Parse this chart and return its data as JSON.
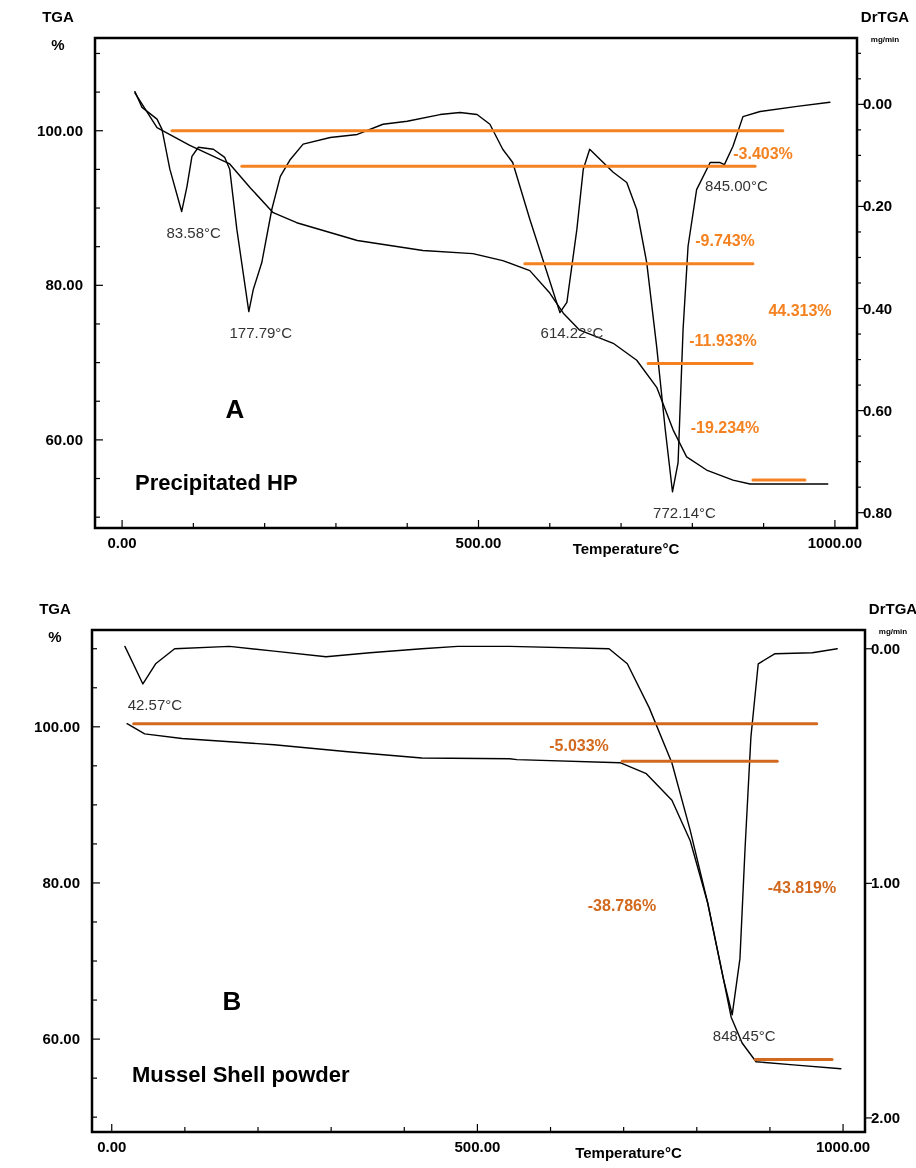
{
  "chart_data": [
    {
      "type": "line",
      "title": "A",
      "subtitle": "Precipitated HP",
      "xlabel": "Temperature°C",
      "ylabel": "TGA\n%",
      "y2label": "DrTGA\nmg/min",
      "xlim": [
        -38,
        1031
      ],
      "ylim": [
        48.6,
        112
      ],
      "y2lim": [
        0.83,
        -0.13
      ],
      "xticks": [
        {
          "value": 0,
          "label": "0.00"
        },
        {
          "value": 100,
          "label": null
        },
        {
          "value": 200,
          "label": null
        },
        {
          "value": 300,
          "label": null
        },
        {
          "value": 400,
          "label": null
        },
        {
          "value": 500,
          "label": "500.00"
        },
        {
          "value": 600,
          "label": null
        },
        {
          "value": 700,
          "label": null
        },
        {
          "value": 800,
          "label": null
        },
        {
          "value": 900,
          "label": null
        },
        {
          "value": 1000,
          "label": "1000.00"
        }
      ],
      "yticks": [
        {
          "value": 50,
          "label": null
        },
        {
          "value": 55,
          "label": null
        },
        {
          "value": 60,
          "label": "60.00"
        },
        {
          "value": 65,
          "label": null
        },
        {
          "value": 70,
          "label": null
        },
        {
          "value": 75,
          "label": null
        },
        {
          "value": 80,
          "label": "80.00"
        },
        {
          "value": 85,
          "label": null
        },
        {
          "value": 90,
          "label": null
        },
        {
          "value": 95,
          "label": null
        },
        {
          "value": 100,
          "label": "100.00"
        },
        {
          "value": 105,
          "label": null
        },
        {
          "value": 110,
          "label": null
        }
      ],
      "y2ticks": [
        {
          "value": -0.1,
          "label": null
        },
        {
          "value": -0.05,
          "label": null
        },
        {
          "value": 0,
          "label": "0.00"
        },
        {
          "value": 0.05,
          "label": null
        },
        {
          "value": 0.1,
          "label": null
        },
        {
          "value": 0.15,
          "label": null
        },
        {
          "value": 0.2,
          "label": "0.20"
        },
        {
          "value": 0.25,
          "label": null
        },
        {
          "value": 0.3,
          "label": null
        },
        {
          "value": 0.35,
          "label": null
        },
        {
          "value": 0.4,
          "label": "0.40"
        },
        {
          "value": 0.45,
          "label": null
        },
        {
          "value": 0.5,
          "label": null
        },
        {
          "value": 0.55,
          "label": null
        },
        {
          "value": 0.6,
          "label": "0.60"
        },
        {
          "value": 0.65,
          "label": null
        },
        {
          "value": 0.7,
          "label": null
        },
        {
          "value": 0.75,
          "label": null
        },
        {
          "value": 0.8,
          "label": "0.80"
        }
      ],
      "series": [
        {
          "color": "#000000",
          "x": [
            18,
            49,
            95,
            151,
            180,
            212,
            245,
            330,
            422,
            492,
            534,
            572,
            600,
            619,
            642,
            689,
            722,
            750,
            773,
            792,
            820,
            857,
            881,
            990
          ],
          "values": [
            104.9,
            100.4,
            98.1,
            95.7,
            92.6,
            89.4,
            88.1,
            85.8,
            84.5,
            84.1,
            83.2,
            81.9,
            79.0,
            76.4,
            74.2,
            72.5,
            70.3,
            66.8,
            61.3,
            57.8,
            56.1,
            54.8,
            54.3,
            54.3
          ]
        },
        {
          "color": "#000000",
          "axis": "y2",
          "x": [
            18,
            28,
            49,
            56,
            67,
            83.58,
            91,
            98,
            107,
            128,
            144,
            151,
            161,
            177.79,
            184,
            196,
            210,
            222,
            236,
            254,
            292,
            330,
            366,
            400,
            446,
            474,
            498,
            516,
            534,
            548,
            572,
            596,
            614.22,
            624,
            638,
            647,
            656,
            675,
            689,
            708,
            722,
            736,
            750,
            762,
            772.14,
            780,
            787,
            794,
            806,
            825,
            839,
            845.0,
            857,
            871,
            895,
            947,
            993
          ],
          "values": [
            -0.025,
            0.006,
            0.029,
            0.049,
            0.127,
            0.21,
            0.161,
            0.102,
            0.084,
            0.088,
            0.104,
            0.127,
            0.245,
            0.406,
            0.363,
            0.31,
            0.206,
            0.141,
            0.108,
            0.078,
            0.065,
            0.059,
            0.039,
            0.033,
            0.02,
            0.016,
            0.02,
            0.039,
            0.088,
            0.114,
            0.225,
            0.329,
            0.408,
            0.388,
            0.245,
            0.127,
            0.088,
            0.114,
            0.133,
            0.153,
            0.206,
            0.31,
            0.475,
            0.637,
            0.759,
            0.702,
            0.441,
            0.278,
            0.167,
            0.114,
            0.114,
            0.118,
            0.082,
            0.024,
            0.014,
            0.004,
            -0.004
          ],
          "marker": "none"
        },
        {
          "color": "#f58220",
          "x": [
            70,
            927
          ],
          "values": [
            100.0,
            100.0
          ]
        },
        {
          "color": "#f58220",
          "x": [
            168,
            888
          ],
          "values": [
            95.4,
            95.4
          ]
        },
        {
          "color": "#f58220",
          "x": [
            565,
            885
          ],
          "values": [
            82.8,
            82.8
          ]
        },
        {
          "color": "#f58220",
          "x": [
            738,
            884
          ],
          "values": [
            69.9,
            69.9
          ]
        },
        {
          "color": "#f58220",
          "x": [
            885,
            958
          ],
          "values": [
            54.8,
            54.8
          ]
        }
      ],
      "annotations": [
        {
          "text": "83.58°C",
          "x": 83.58,
          "y": 89.5
        },
        {
          "text": "177.79°C",
          "x": 177.79,
          "y": 76.6
        },
        {
          "text": "614.22°C",
          "x": 614.22,
          "y": 76.5
        },
        {
          "text": "772.14°C",
          "x": 772.14,
          "y": 53.3
        },
        {
          "text": "845.00°C",
          "x": 845.0,
          "y": 95.6
        },
        "-3.403%",
        "-9.743%",
        "44.313%",
        "-11.933%",
        "-19.234%"
      ]
    },
    {
      "type": "line",
      "title": "B",
      "subtitle": "Mussel Shell powder",
      "xlabel": "Temperature°C",
      "ylabel": "TGA\n%",
      "y2label": "DrTGA\nmg/min",
      "xlim": [
        -27,
        1030
      ],
      "ylim": [
        48.1,
        112.4
      ],
      "y2lim": [
        2.06,
        -0.08
      ],
      "xticks": [
        {
          "value": 0,
          "label": "0.00"
        },
        {
          "value": 100,
          "label": null
        },
        {
          "value": 200,
          "label": null
        },
        {
          "value": 300,
          "label": null
        },
        {
          "value": 400,
          "label": null
        },
        {
          "value": 500,
          "label": "500.00"
        },
        {
          "value": 600,
          "label": null
        },
        {
          "value": 700,
          "label": null
        },
        {
          "value": 800,
          "label": null
        },
        {
          "value": 900,
          "label": null
        },
        {
          "value": 1000,
          "label": "1000.00"
        }
      ],
      "yticks": [
        {
          "value": 50,
          "label": null
        },
        {
          "value": 55,
          "label": null
        },
        {
          "value": 60,
          "label": "60.00"
        },
        {
          "value": 65,
          "label": null
        },
        {
          "value": 70,
          "label": null
        },
        {
          "value": 75,
          "label": null
        },
        {
          "value": 80,
          "label": "80.00"
        },
        {
          "value": 85,
          "label": null
        },
        {
          "value": 90,
          "label": null
        },
        {
          "value": 95,
          "label": null
        },
        {
          "value": 100,
          "label": "100.00"
        },
        {
          "value": 105,
          "label": null
        },
        {
          "value": 110,
          "label": null
        }
      ],
      "y2ticks": [
        {
          "value": 0,
          "label": "0.00"
        },
        {
          "value": 1,
          "label": "1.00"
        },
        {
          "value": 2,
          "label": "2.00"
        }
      ],
      "series": [
        {
          "color": "#000000",
          "x": [
            21,
            45,
            96,
            222,
            323,
            424,
            544,
            554,
            695,
            731,
            766,
            791,
            815,
            836,
            847,
            862,
            881,
            932,
            997
          ],
          "values": [
            100.4,
            99.1,
            98.5,
            97.7,
            96.8,
            96.0,
            95.9,
            95.8,
            95.4,
            94.0,
            90.6,
            85.4,
            77.4,
            67.9,
            62.8,
            59.5,
            57.1,
            56.7,
            56.2
          ]
        },
        {
          "color": "#000000",
          "axis": "y2",
          "x": [
            18,
            42.57,
            60,
            86,
            161,
            222,
            293,
            353,
            424,
            473,
            544,
            680,
            705,
            735,
            766,
            791,
            815,
            836,
            848.45,
            859,
            866,
            874,
            884,
            907,
            958,
            992
          ],
          "values": [
            -0.01,
            0.15,
            0.064,
            0.0,
            -0.01,
            0.01,
            0.034,
            0.017,
            0.0,
            -0.01,
            -0.01,
            0.0,
            0.064,
            0.252,
            0.487,
            0.774,
            1.085,
            1.402,
            1.56,
            1.321,
            0.85,
            0.376,
            0.064,
            0.021,
            0.017,
            0.0
          ],
          "marker": "none"
        },
        {
          "color": "#d2691e",
          "x": [
            30,
            964
          ],
          "values": [
            100.4,
            100.4
          ]
        },
        {
          "color": "#d2691e",
          "x": [
            698,
            910
          ],
          "values": [
            95.6,
            95.6
          ]
        },
        {
          "color": "#d2691e",
          "x": [
            880,
            985
          ],
          "values": [
            57.4,
            57.4
          ]
        }
      ],
      "annotations": [
        {
          "text": "42.57°C",
          "x": 42.57,
          "y": 105.5
        },
        {
          "text": "848.45°C",
          "x": 848.45,
          "y": 63.1
        },
        "-5.033%",
        "-38.786%",
        "-43.819%"
      ]
    }
  ]
}
